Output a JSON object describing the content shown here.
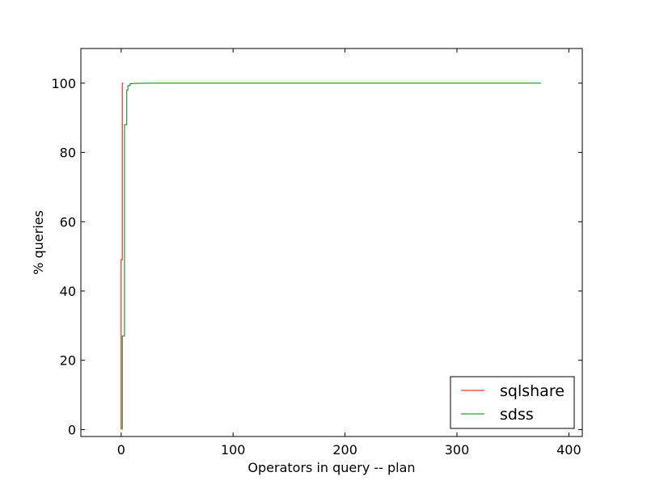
{
  "chart_data": {
    "type": "line",
    "step": true,
    "xlabel": "Operators in query -- plan",
    "ylabel": "% queries",
    "xlim": [
      -36,
      412
    ],
    "ylim": [
      -2,
      110
    ],
    "xticks": [
      0,
      100,
      200,
      300,
      400
    ],
    "yticks": [
      0,
      20,
      40,
      60,
      80,
      100
    ],
    "grid": false,
    "legend_position": "lower-right",
    "series": [
      {
        "name": "sqlshare",
        "color": "#ff0000",
        "x": [
          0,
          0,
          1,
          1,
          2,
          2
        ],
        "y": [
          0,
          49,
          49,
          100,
          100,
          100
        ]
      },
      {
        "name": "sdss",
        "color": "#008000",
        "x": [
          1,
          1,
          3,
          3,
          5,
          5,
          6,
          6,
          8,
          8,
          10,
          25,
          375
        ],
        "y": [
          0,
          27,
          27,
          88,
          88,
          98,
          98,
          99.3,
          99.3,
          99.8,
          99.9,
          100,
          100
        ]
      }
    ]
  }
}
